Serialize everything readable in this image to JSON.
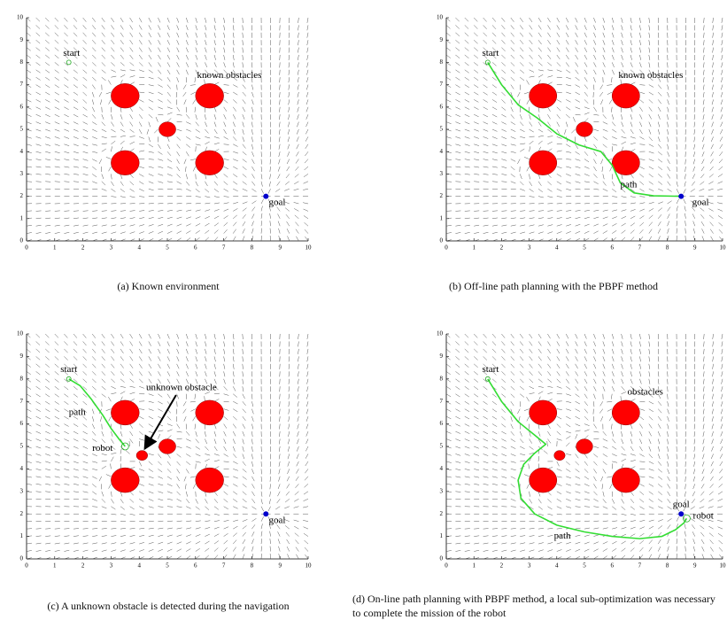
{
  "chart_data": [
    {
      "type": "path-planning",
      "xlim": [
        0,
        10
      ],
      "ylim": [
        0,
        10
      ],
      "xticks": [
        0,
        1,
        2,
        3,
        4,
        5,
        6,
        7,
        8,
        9,
        10
      ],
      "yticks": [
        0,
        1,
        2,
        3,
        4,
        5,
        6,
        7,
        8,
        9,
        10
      ],
      "obstacle_color": "#ff0000",
      "goal_color": "#0000cc",
      "path_color": "#33dd33",
      "obstacles": [
        {
          "x": 3.5,
          "y": 6.5,
          "r": 0.5
        },
        {
          "x": 6.5,
          "y": 6.5,
          "r": 0.5
        },
        {
          "x": 5,
          "y": 5,
          "r": 0.3
        },
        {
          "x": 3.5,
          "y": 3.5,
          "r": 0.5
        },
        {
          "x": 6.5,
          "y": 3.5,
          "r": 0.5
        }
      ],
      "start": {
        "x": 1.5,
        "y": 8
      },
      "goal": {
        "x": 8.5,
        "y": 2
      },
      "annotations": [
        {
          "text": "start",
          "x": 1.6,
          "y": 8.4
        },
        {
          "text": "known obstacles",
          "x": 7.2,
          "y": 7.4
        },
        {
          "text": "goal",
          "x": 8.9,
          "y": 1.7
        }
      ],
      "caption": "(a)  Known environment"
    },
    {
      "type": "path-planning",
      "xlim": [
        0,
        10
      ],
      "ylim": [
        0,
        10
      ],
      "xticks": [
        0,
        1,
        2,
        3,
        4,
        5,
        6,
        7,
        8,
        9,
        10
      ],
      "yticks": [
        0,
        1,
        2,
        3,
        4,
        5,
        6,
        7,
        8,
        9,
        10
      ],
      "obstacle_color": "#ff0000",
      "goal_color": "#0000cc",
      "path_color": "#33dd33",
      "obstacles": [
        {
          "x": 3.5,
          "y": 6.5,
          "r": 0.5
        },
        {
          "x": 6.5,
          "y": 6.5,
          "r": 0.5
        },
        {
          "x": 5,
          "y": 5,
          "r": 0.3
        },
        {
          "x": 3.5,
          "y": 3.5,
          "r": 0.5
        },
        {
          "x": 6.5,
          "y": 3.5,
          "r": 0.5
        }
      ],
      "start": {
        "x": 1.5,
        "y": 8
      },
      "goal": {
        "x": 8.5,
        "y": 2
      },
      "path": {
        "x": [
          1.5,
          2,
          2.6,
          3.3,
          4,
          4.8,
          5.6,
          6,
          6.3,
          6.8,
          7.5,
          8.5
        ],
        "y": [
          8,
          7,
          6.1,
          5.5,
          4.8,
          4.3,
          4,
          3.4,
          2.6,
          2.15,
          2.02,
          2
        ]
      },
      "annotations": [
        {
          "text": "start",
          "x": 1.6,
          "y": 8.4
        },
        {
          "text": "known obstacles",
          "x": 7.4,
          "y": 7.4
        },
        {
          "text": "path",
          "x": 6.6,
          "y": 2.5
        },
        {
          "text": "goal",
          "x": 9.2,
          "y": 1.7
        }
      ],
      "caption": "(b)  Off-line path planning with the PBPF method"
    },
    {
      "type": "path-planning",
      "xlim": [
        0,
        10
      ],
      "ylim": [
        0,
        10
      ],
      "xticks": [
        0,
        1,
        2,
        3,
        4,
        5,
        6,
        7,
        8,
        9,
        10
      ],
      "yticks": [
        0,
        1,
        2,
        3,
        4,
        5,
        6,
        7,
        8,
        9,
        10
      ],
      "obstacle_color": "#ff0000",
      "goal_color": "#0000cc",
      "path_color": "#33dd33",
      "obstacles": [
        {
          "x": 3.5,
          "y": 6.5,
          "r": 0.5
        },
        {
          "x": 6.5,
          "y": 6.5,
          "r": 0.5
        },
        {
          "x": 5,
          "y": 5,
          "r": 0.3
        },
        {
          "x": 3.5,
          "y": 3.5,
          "r": 0.5
        },
        {
          "x": 6.5,
          "y": 3.5,
          "r": 0.5
        },
        {
          "x": 4.1,
          "y": 4.6,
          "r": 0.2
        }
      ],
      "start": {
        "x": 1.5,
        "y": 8
      },
      "goal": {
        "x": 8.5,
        "y": 2
      },
      "path": {
        "x": [
          1.5,
          1.9,
          2.3,
          2.7,
          3.0,
          3.3,
          3.5
        ],
        "y": [
          8,
          7.7,
          7.1,
          6.4,
          5.8,
          5.3,
          5
        ]
      },
      "robot": {
        "x": 3.5,
        "y": 5
      },
      "annotations": [
        {
          "text": "start",
          "x": 1.5,
          "y": 8.4
        },
        {
          "text": "path",
          "x": 1.8,
          "y": 6.5
        },
        {
          "text": "unknown obstacle",
          "x": 5.5,
          "y": 7.6,
          "arrow_to": {
            "x": 4.2,
            "y": 4.9
          }
        },
        {
          "text": "robot",
          "x": 2.7,
          "y": 4.9
        },
        {
          "text": "goal",
          "x": 8.9,
          "y": 1.7
        }
      ],
      "caption": "(c)  A unknown obstacle is detected during the navigation"
    },
    {
      "type": "path-planning",
      "xlim": [
        0,
        10
      ],
      "ylim": [
        0,
        10
      ],
      "xticks": [
        0,
        1,
        2,
        3,
        4,
        5,
        6,
        7,
        8,
        9,
        10
      ],
      "yticks": [
        0,
        1,
        2,
        3,
        4,
        5,
        6,
        7,
        8,
        9,
        10
      ],
      "obstacle_color": "#ff0000",
      "goal_color": "#0000cc",
      "path_color": "#33dd33",
      "obstacles": [
        {
          "x": 3.5,
          "y": 6.5,
          "r": 0.5
        },
        {
          "x": 6.5,
          "y": 6.5,
          "r": 0.5
        },
        {
          "x": 5,
          "y": 5,
          "r": 0.3
        },
        {
          "x": 3.5,
          "y": 3.5,
          "r": 0.5
        },
        {
          "x": 6.5,
          "y": 3.5,
          "r": 0.5
        },
        {
          "x": 4.1,
          "y": 4.6,
          "r": 0.2
        }
      ],
      "start": {
        "x": 1.5,
        "y": 8
      },
      "goal": {
        "x": 8.5,
        "y": 2
      },
      "path": {
        "x": [
          1.5,
          2,
          2.6,
          3.2,
          3.6,
          3.2,
          2.8,
          2.6,
          2.7,
          3.2,
          4,
          5,
          6,
          7,
          7.8,
          8.3,
          8.6,
          8.7
        ],
        "y": [
          8,
          7,
          6.1,
          5.5,
          5.1,
          4.7,
          4.2,
          3.5,
          2.7,
          2.0,
          1.5,
          1.2,
          1.0,
          0.9,
          1.0,
          1.3,
          1.6,
          1.8
        ]
      },
      "robot": {
        "x": 8.7,
        "y": 1.8
      },
      "annotations": [
        {
          "text": "start",
          "x": 1.6,
          "y": 8.4
        },
        {
          "text": "obstacles",
          "x": 7.2,
          "y": 7.4
        },
        {
          "text": "path",
          "x": 4.2,
          "y": 1.0
        },
        {
          "text": "goal",
          "x": 8.5,
          "y": 2.4
        },
        {
          "text": "robot",
          "x": 9.3,
          "y": 1.9
        }
      ],
      "caption": "(d)  On-line path planning with PBPF method, a local sub-optimization was necessary to complete the mission of the robot"
    }
  ]
}
